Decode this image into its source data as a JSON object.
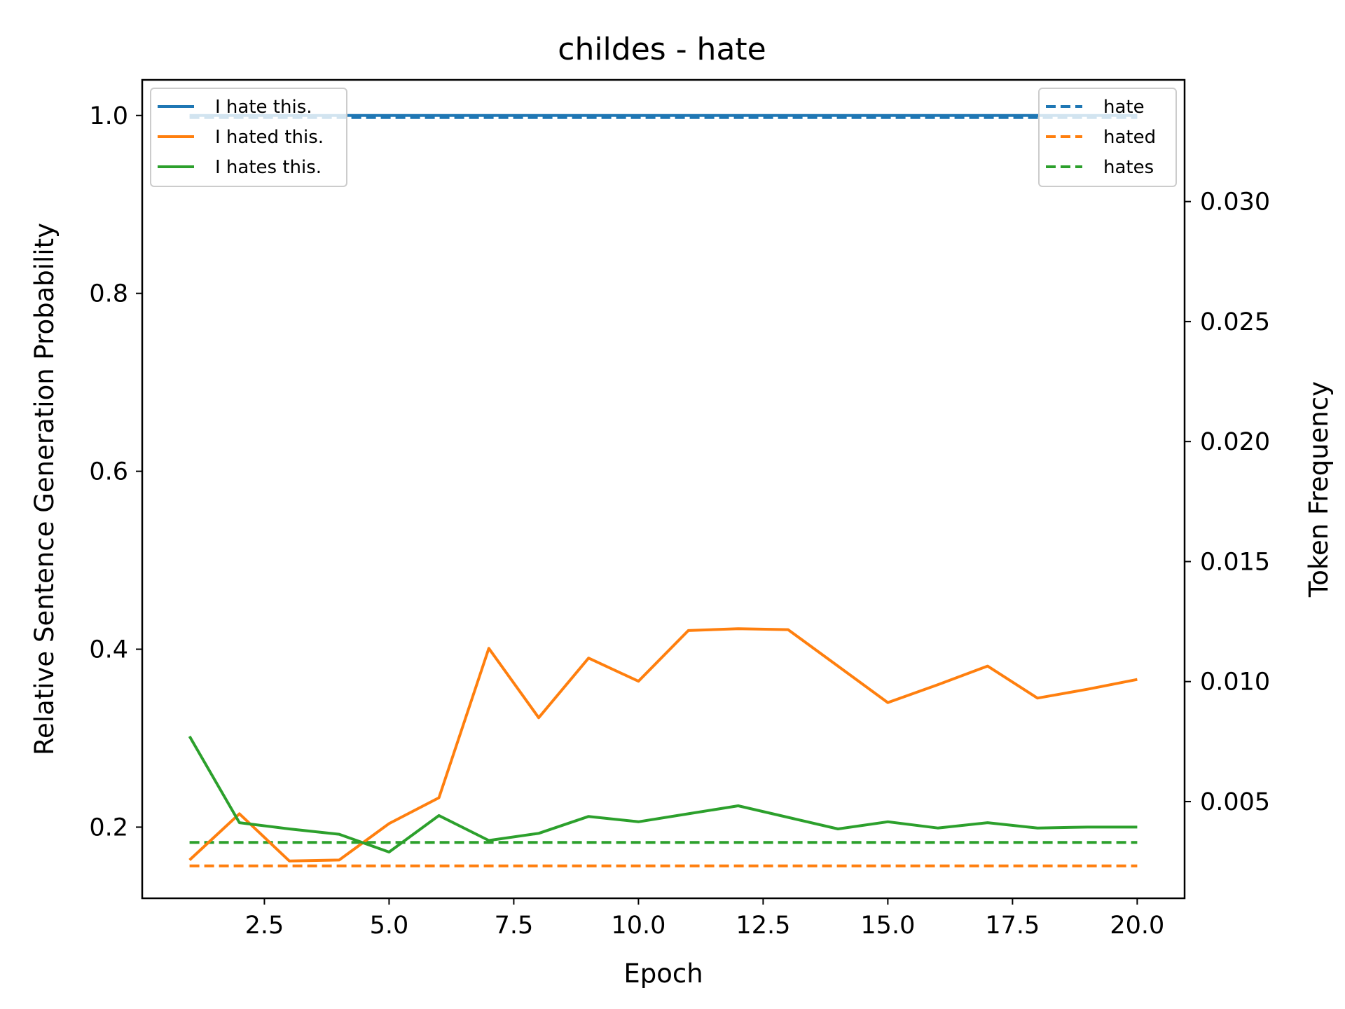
{
  "chart_data": {
    "type": "line",
    "title": "childes - hate",
    "xlabel": "Epoch",
    "ylabel": "Relative Sentence Generation Probability",
    "y2label": "Token Frequency",
    "xlim": [
      0.05,
      20.95
    ],
    "ylim": [
      0.12,
      1.04
    ],
    "y2lim": [
      0.00097,
      0.03507
    ],
    "xticks": [
      2.5,
      5.0,
      7.5,
      10.0,
      12.5,
      15.0,
      17.5,
      20.0
    ],
    "xtick_labels": [
      "2.5",
      "5.0",
      "7.5",
      "10.0",
      "12.5",
      "15.0",
      "17.5",
      "20.0"
    ],
    "yticks": [
      0.2,
      0.4,
      0.6,
      0.8,
      1.0
    ],
    "ytick_labels": [
      "0.2",
      "0.4",
      "0.6",
      "0.8",
      "1.0"
    ],
    "y2ticks": [
      0.005,
      0.01,
      0.015,
      0.02,
      0.025,
      0.03
    ],
    "y2tick_labels": [
      "0.005",
      "0.010",
      "0.015",
      "0.020",
      "0.025",
      "0.030"
    ],
    "grid": false,
    "x": [
      1,
      2,
      3,
      4,
      5,
      6,
      7,
      8,
      9,
      10,
      11,
      12,
      13,
      14,
      15,
      16,
      17,
      18,
      19,
      20
    ],
    "series": [
      {
        "name": "I hate this.",
        "axis": "left",
        "style": "solid",
        "color": "#1f77b4",
        "values": [
          1.0,
          1.0,
          1.0,
          1.0,
          1.0,
          1.0,
          1.0,
          1.0,
          1.0,
          1.0,
          1.0,
          1.0,
          1.0,
          1.0,
          1.0,
          1.0,
          1.0,
          1.0,
          1.0,
          1.0
        ]
      },
      {
        "name": "I hated this.",
        "axis": "left",
        "style": "solid",
        "color": "#ff7f0e",
        "values": [
          0.163,
          0.215,
          0.162,
          0.163,
          0.204,
          0.233,
          0.401,
          0.323,
          0.39,
          0.364,
          0.421,
          0.423,
          0.422,
          0.381,
          0.34,
          0.36,
          0.381,
          0.345,
          0.355,
          0.366
        ]
      },
      {
        "name": "I hates this.",
        "axis": "left",
        "style": "solid",
        "color": "#2ca02c",
        "values": [
          0.302,
          0.205,
          0.198,
          0.192,
          0.172,
          0.213,
          0.185,
          0.193,
          0.212,
          0.206,
          0.215,
          0.224,
          0.211,
          0.198,
          0.206,
          0.199,
          0.205,
          0.199,
          0.2,
          0.2
        ]
      },
      {
        "name": "hate",
        "axis": "right",
        "style": "dashed",
        "color": "#1f77b4",
        "values": [
          0.0335,
          0.0335,
          0.0335,
          0.0335,
          0.0335,
          0.0335,
          0.0335,
          0.0335,
          0.0335,
          0.0335,
          0.0335,
          0.0335,
          0.0335,
          0.0335,
          0.0335,
          0.0335,
          0.0335,
          0.0335,
          0.0335,
          0.0335
        ]
      },
      {
        "name": "hated",
        "axis": "right",
        "style": "dashed",
        "color": "#ff7f0e",
        "values": [
          0.00232,
          0.00232,
          0.00232,
          0.00232,
          0.00232,
          0.00232,
          0.00232,
          0.00232,
          0.00232,
          0.00232,
          0.00232,
          0.00232,
          0.00232,
          0.00232,
          0.00232,
          0.00232,
          0.00232,
          0.00232,
          0.00232,
          0.00232
        ]
      },
      {
        "name": "hates",
        "axis": "right",
        "style": "dashed",
        "color": "#2ca02c",
        "values": [
          0.0033,
          0.0033,
          0.0033,
          0.0033,
          0.0033,
          0.0033,
          0.0033,
          0.0033,
          0.0033,
          0.0033,
          0.0033,
          0.0033,
          0.0033,
          0.0033,
          0.0033,
          0.0033,
          0.0033,
          0.0033,
          0.0033,
          0.0033
        ]
      }
    ],
    "legends": [
      {
        "placement": "upper left",
        "entries": [
          "I hate this.",
          "I hated this.",
          "I hates this."
        ]
      },
      {
        "placement": "upper right",
        "entries": [
          "hate",
          "hated",
          "hates"
        ]
      }
    ]
  }
}
